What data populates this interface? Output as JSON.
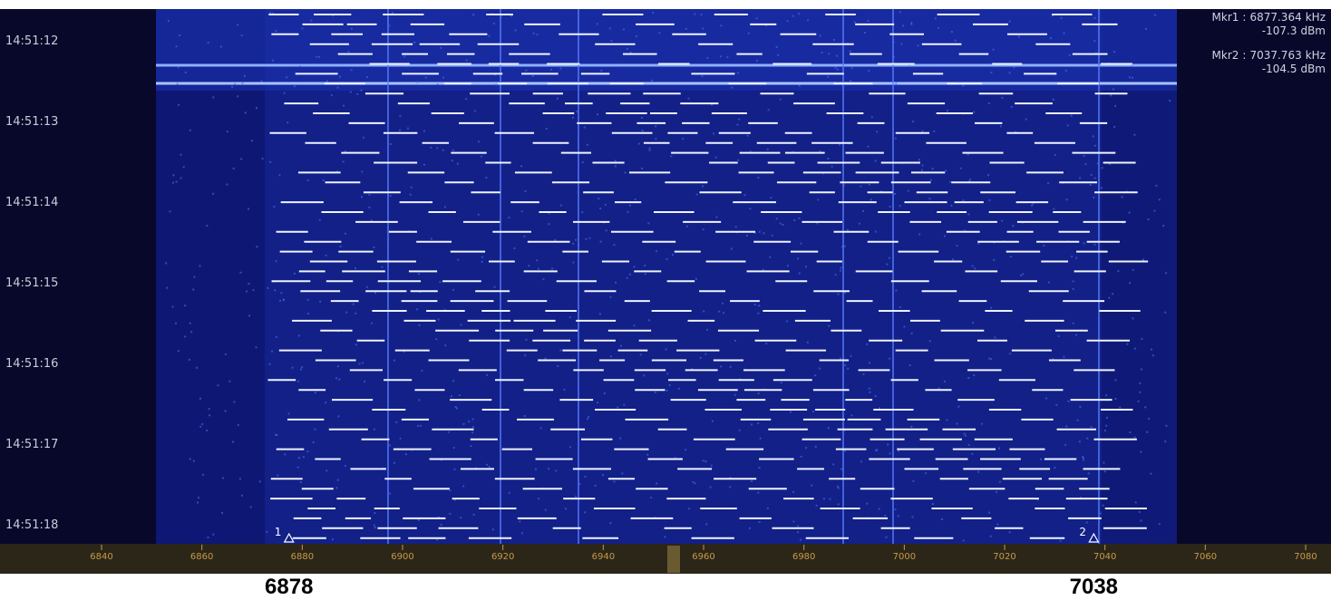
{
  "time_labels": [
    "14:51:12",
    "14:51:13",
    "14:51:14",
    "14:51:15",
    "14:51:16",
    "14:51:17",
    "14:51:18"
  ],
  "markers": [
    {
      "label": "1",
      "name": "Mkr1",
      "separator": ":",
      "freq": 6877.364,
      "freq_unit": "kHz",
      "level": -107.3,
      "level_unit": "dBm"
    },
    {
      "label": "2",
      "name": "Mkr2",
      "separator": ":",
      "freq": 7037.763,
      "freq_unit": "kHz",
      "level": -104.5,
      "level_unit": "dBm"
    }
  ],
  "axis_ticks": [
    6840,
    6860,
    6880,
    6900,
    6920,
    6940,
    6960,
    6980,
    7000,
    7020,
    7040,
    7060,
    7080
  ],
  "bottom_labels": [
    "6878",
    "7038"
  ]
}
